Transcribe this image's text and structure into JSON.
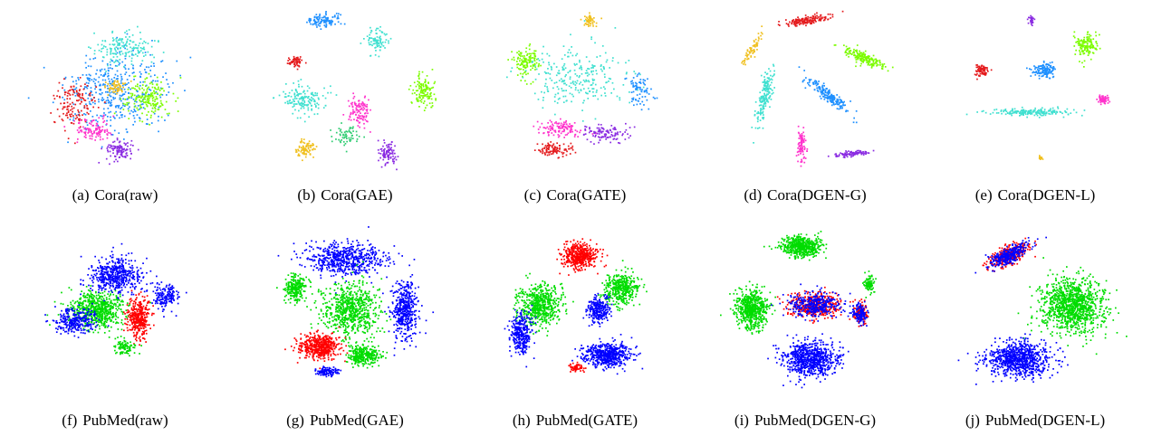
{
  "figure": {
    "panels": [
      {
        "tag": "(a)",
        "caption": "Cora(raw)"
      },
      {
        "tag": "(b)",
        "caption": "Cora(GAE)"
      },
      {
        "tag": "(c)",
        "caption": "Cora(GATE)"
      },
      {
        "tag": "(d)",
        "caption": "Cora(DGEN-G)"
      },
      {
        "tag": "(e)",
        "caption": "Cora(DGEN-L)"
      },
      {
        "tag": "(f)",
        "caption": "PubMed(raw)"
      },
      {
        "tag": "(g)",
        "caption": "PubMed(GAE)"
      },
      {
        "tag": "(h)",
        "caption": "PubMed(GATE)"
      },
      {
        "tag": "(i)",
        "caption": "PubMed(DGEN-G)"
      },
      {
        "tag": "(j)",
        "caption": "PubMed(DGEN-L)"
      }
    ]
  },
  "chart_data": [
    {
      "type": "scatter",
      "dataset": "Cora",
      "method": "raw",
      "class_colors": [
        "#e41a1c",
        "#ff7f00",
        "#f0c020",
        "#7cfc00",
        "#2ecc71",
        "#40e0d0",
        "#1e90ff",
        "#8a2be2",
        "#ff33cc"
      ],
      "grid": false,
      "legend": "none",
      "clusters": [
        {
          "x": 0.0,
          "y": 0.0,
          "sx": 0.55,
          "sy": 0.45,
          "color": 6,
          "n": 420
        },
        {
          "x": 0.35,
          "y": 0.1,
          "sx": 0.25,
          "sy": 0.25,
          "color": 3,
          "n": 180
        },
        {
          "x": -0.45,
          "y": 0.15,
          "sx": 0.25,
          "sy": 0.3,
          "color": 0,
          "n": 140
        },
        {
          "x": -0.25,
          "y": 0.45,
          "sx": 0.2,
          "sy": 0.15,
          "color": 8,
          "n": 110
        },
        {
          "x": 0.05,
          "y": 0.7,
          "sx": 0.15,
          "sy": 0.12,
          "color": 7,
          "n": 110
        },
        {
          "x": 0.0,
          "y": -0.05,
          "sx": 0.1,
          "sy": 0.08,
          "color": 2,
          "n": 60
        },
        {
          "x": 0.1,
          "y": -0.5,
          "sx": 0.35,
          "sy": 0.2,
          "color": 5,
          "n": 160
        }
      ]
    },
    {
      "type": "scatter",
      "dataset": "Cora",
      "method": "GAE",
      "class_colors": [
        "#e41a1c",
        "#ff7f00",
        "#f0c020",
        "#7cfc00",
        "#2ecc71",
        "#40e0d0",
        "#1e90ff",
        "#8a2be2",
        "#ff33cc"
      ],
      "grid": false,
      "legend": "none",
      "clusters": [
        {
          "x": -0.25,
          "y": -0.85,
          "sx": 0.18,
          "sy": 0.08,
          "color": 6,
          "n": 110
        },
        {
          "x": 0.35,
          "y": -0.6,
          "sx": 0.12,
          "sy": 0.15,
          "color": 5,
          "n": 90
        },
        {
          "x": -0.55,
          "y": -0.35,
          "sx": 0.08,
          "sy": 0.07,
          "color": 0,
          "n": 60
        },
        {
          "x": -0.45,
          "y": 0.1,
          "sx": 0.25,
          "sy": 0.18,
          "color": 5,
          "n": 160
        },
        {
          "x": 0.85,
          "y": 0.0,
          "sx": 0.12,
          "sy": 0.18,
          "color": 3,
          "n": 130
        },
        {
          "x": 0.15,
          "y": 0.25,
          "sx": 0.12,
          "sy": 0.18,
          "color": 8,
          "n": 110
        },
        {
          "x": -0.45,
          "y": 0.7,
          "sx": 0.1,
          "sy": 0.1,
          "color": 2,
          "n": 90
        },
        {
          "x": 0.45,
          "y": 0.75,
          "sx": 0.1,
          "sy": 0.15,
          "color": 7,
          "n": 90
        },
        {
          "x": 0.0,
          "y": 0.55,
          "sx": 0.15,
          "sy": 0.12,
          "color": 4,
          "n": 60
        }
      ]
    },
    {
      "type": "scatter",
      "dataset": "Cora",
      "method": "GATE",
      "class_colors": [
        "#e41a1c",
        "#ff7f00",
        "#f0c020",
        "#7cfc00",
        "#2ecc71",
        "#40e0d0",
        "#1e90ff",
        "#8a2be2",
        "#ff33cc"
      ],
      "grid": false,
      "legend": "none",
      "clusters": [
        {
          "x": 0.15,
          "y": -0.85,
          "sx": 0.06,
          "sy": 0.08,
          "color": 2,
          "n": 50
        },
        {
          "x": -0.55,
          "y": -0.35,
          "sx": 0.15,
          "sy": 0.2,
          "color": 3,
          "n": 130
        },
        {
          "x": 0.0,
          "y": -0.15,
          "sx": 0.5,
          "sy": 0.35,
          "color": 5,
          "n": 260
        },
        {
          "x": -0.15,
          "y": 0.45,
          "sx": 0.25,
          "sy": 0.1,
          "color": 8,
          "n": 120
        },
        {
          "x": 0.35,
          "y": 0.5,
          "sx": 0.25,
          "sy": 0.1,
          "color": 7,
          "n": 110
        },
        {
          "x": -0.25,
          "y": 0.7,
          "sx": 0.2,
          "sy": 0.08,
          "color": 0,
          "n": 100
        },
        {
          "x": 0.7,
          "y": 0.0,
          "sx": 0.15,
          "sy": 0.2,
          "color": 6,
          "n": 80
        }
      ]
    },
    {
      "type": "scatter",
      "dataset": "Cora",
      "method": "DGEN-G",
      "class_colors": [
        "#e41a1c",
        "#ff7f00",
        "#f0c020",
        "#7cfc00",
        "#2ecc71",
        "#40e0d0",
        "#1e90ff",
        "#8a2be2",
        "#ff33cc"
      ],
      "grid": false,
      "legend": "none",
      "clusters": [
        {
          "x": 0.0,
          "y": -0.85,
          "sx": 0.25,
          "sy": 0.05,
          "color": 0,
          "n": 150,
          "rot": -0.2
        },
        {
          "x": -0.6,
          "y": -0.5,
          "sx": 0.05,
          "sy": 0.22,
          "color": 2,
          "n": 70,
          "rot": 0.5
        },
        {
          "x": 0.65,
          "y": -0.4,
          "sx": 0.25,
          "sy": 0.07,
          "color": 3,
          "n": 170,
          "rot": 0.45
        },
        {
          "x": -0.45,
          "y": 0.05,
          "sx": 0.07,
          "sy": 0.35,
          "color": 5,
          "n": 180,
          "rot": 0.2
        },
        {
          "x": 0.25,
          "y": 0.05,
          "sx": 0.3,
          "sy": 0.07,
          "color": 6,
          "n": 190,
          "rot": 0.7
        },
        {
          "x": -0.05,
          "y": 0.65,
          "sx": 0.05,
          "sy": 0.2,
          "color": 8,
          "n": 90
        },
        {
          "x": 0.5,
          "y": 0.75,
          "sx": 0.2,
          "sy": 0.03,
          "color": 7,
          "n": 100,
          "rot": -0.1
        }
      ]
    },
    {
      "type": "scatter",
      "dataset": "Cora",
      "method": "DGEN-L",
      "class_colors": [
        "#e41a1c",
        "#ff7f00",
        "#f0c020",
        "#7cfc00",
        "#2ecc71",
        "#40e0d0",
        "#1e90ff",
        "#8a2be2",
        "#ff33cc"
      ],
      "grid": false,
      "legend": "none",
      "clusters": [
        {
          "x": -0.05,
          "y": -0.85,
          "sx": 0.03,
          "sy": 0.05,
          "color": 7,
          "n": 40
        },
        {
          "x": 0.55,
          "y": -0.55,
          "sx": 0.12,
          "sy": 0.15,
          "color": 3,
          "n": 150
        },
        {
          "x": -0.6,
          "y": -0.25,
          "sx": 0.07,
          "sy": 0.07,
          "color": 0,
          "n": 80
        },
        {
          "x": 0.1,
          "y": -0.25,
          "sx": 0.12,
          "sy": 0.1,
          "color": 6,
          "n": 130
        },
        {
          "x": 0.75,
          "y": 0.1,
          "sx": 0.06,
          "sy": 0.05,
          "color": 8,
          "n": 60
        },
        {
          "x": -0.05,
          "y": 0.25,
          "sx": 0.45,
          "sy": 0.04,
          "color": 5,
          "n": 190
        },
        {
          "x": 0.05,
          "y": 0.8,
          "sx": 0.02,
          "sy": 0.02,
          "color": 2,
          "n": 20
        }
      ]
    },
    {
      "type": "scatter",
      "dataset": "PubMed",
      "method": "raw",
      "class_colors": [
        "#ff0000",
        "#00dd00",
        "#0000ff"
      ],
      "grid": false,
      "legend": "none",
      "clusters": [
        {
          "x": -0.2,
          "y": 0.0,
          "sx": 0.3,
          "sy": 0.22,
          "color": 1,
          "n": 650
        },
        {
          "x": 0.0,
          "y": -0.4,
          "sx": 0.3,
          "sy": 0.2,
          "color": 2,
          "n": 500
        },
        {
          "x": 0.25,
          "y": 0.1,
          "sx": 0.12,
          "sy": 0.22,
          "color": 0,
          "n": 380
        },
        {
          "x": -0.45,
          "y": 0.15,
          "sx": 0.22,
          "sy": 0.15,
          "color": 2,
          "n": 280
        },
        {
          "x": 0.55,
          "y": -0.15,
          "sx": 0.15,
          "sy": 0.15,
          "color": 2,
          "n": 160
        },
        {
          "x": 0.1,
          "y": 0.45,
          "sx": 0.12,
          "sy": 0.08,
          "color": 1,
          "n": 90
        }
      ]
    },
    {
      "type": "scatter",
      "dataset": "PubMed",
      "method": "GAE",
      "class_colors": [
        "#ff0000",
        "#00dd00",
        "#0000ff"
      ],
      "grid": false,
      "legend": "none",
      "clusters": [
        {
          "x": 0.0,
          "y": -0.6,
          "sx": 0.45,
          "sy": 0.2,
          "color": 2,
          "n": 600
        },
        {
          "x": 0.65,
          "y": 0.0,
          "sx": 0.15,
          "sy": 0.35,
          "color": 2,
          "n": 450
        },
        {
          "x": 0.05,
          "y": 0.0,
          "sx": 0.3,
          "sy": 0.3,
          "color": 1,
          "n": 700
        },
        {
          "x": -0.3,
          "y": 0.45,
          "sx": 0.22,
          "sy": 0.15,
          "color": 0,
          "n": 500
        },
        {
          "x": -0.55,
          "y": -0.25,
          "sx": 0.12,
          "sy": 0.15,
          "color": 1,
          "n": 250
        },
        {
          "x": 0.2,
          "y": 0.55,
          "sx": 0.18,
          "sy": 0.12,
          "color": 1,
          "n": 300
        },
        {
          "x": -0.2,
          "y": 0.75,
          "sx": 0.12,
          "sy": 0.05,
          "color": 2,
          "n": 120
        }
      ]
    },
    {
      "type": "scatter",
      "dataset": "PubMed",
      "method": "GATE",
      "class_colors": [
        "#ff0000",
        "#00dd00",
        "#0000ff"
      ],
      "grid": false,
      "legend": "none",
      "clusters": [
        {
          "x": 0.05,
          "y": -0.65,
          "sx": 0.2,
          "sy": 0.15,
          "color": 0,
          "n": 450
        },
        {
          "x": -0.4,
          "y": -0.05,
          "sx": 0.25,
          "sy": 0.25,
          "color": 1,
          "n": 550
        },
        {
          "x": 0.5,
          "y": -0.25,
          "sx": 0.2,
          "sy": 0.2,
          "color": 1,
          "n": 400
        },
        {
          "x": 0.35,
          "y": 0.55,
          "sx": 0.25,
          "sy": 0.15,
          "color": 2,
          "n": 550
        },
        {
          "x": -0.6,
          "y": 0.3,
          "sx": 0.12,
          "sy": 0.25,
          "color": 2,
          "n": 300
        },
        {
          "x": 0.25,
          "y": 0.0,
          "sx": 0.12,
          "sy": 0.15,
          "color": 2,
          "n": 250
        },
        {
          "x": 0.0,
          "y": 0.7,
          "sx": 0.1,
          "sy": 0.05,
          "color": 0,
          "n": 60
        }
      ]
    },
    {
      "type": "scatter",
      "dataset": "PubMed",
      "method": "DGEN-G",
      "class_colors": [
        "#ff0000",
        "#00dd00",
        "#0000ff"
      ],
      "grid": false,
      "legend": "none",
      "clusters": [
        {
          "x": -0.05,
          "y": -0.75,
          "sx": 0.2,
          "sy": 0.12,
          "color": 1,
          "n": 550
        },
        {
          "x": -0.6,
          "y": 0.0,
          "sx": 0.18,
          "sy": 0.22,
          "color": 1,
          "n": 650
        },
        {
          "x": 0.1,
          "y": -0.05,
          "sx": 0.28,
          "sy": 0.15,
          "color": 0,
          "n": 350
        },
        {
          "x": 0.1,
          "y": -0.05,
          "sx": 0.28,
          "sy": 0.15,
          "color": 2,
          "n": 350
        },
        {
          "x": 0.6,
          "y": 0.05,
          "sx": 0.08,
          "sy": 0.12,
          "color": 0,
          "n": 120
        },
        {
          "x": 0.6,
          "y": 0.05,
          "sx": 0.08,
          "sy": 0.12,
          "color": 2,
          "n": 120
        },
        {
          "x": 0.05,
          "y": 0.6,
          "sx": 0.3,
          "sy": 0.2,
          "color": 2,
          "n": 750
        },
        {
          "x": 0.7,
          "y": -0.3,
          "sx": 0.05,
          "sy": 0.1,
          "color": 1,
          "n": 90
        }
      ]
    },
    {
      "type": "scatter",
      "dataset": "PubMed",
      "method": "DGEN-L",
      "class_colors": [
        "#ff0000",
        "#00dd00",
        "#0000ff"
      ],
      "grid": false,
      "legend": "none",
      "clusters": [
        {
          "x": -0.3,
          "y": -0.65,
          "sx": 0.25,
          "sy": 0.1,
          "color": 0,
          "n": 300,
          "rot": -0.5
        },
        {
          "x": -0.3,
          "y": -0.65,
          "sx": 0.25,
          "sy": 0.1,
          "color": 2,
          "n": 300,
          "rot": -0.5
        },
        {
          "x": 0.4,
          "y": -0.05,
          "sx": 0.35,
          "sy": 0.32,
          "color": 1,
          "n": 1100
        },
        {
          "x": -0.2,
          "y": 0.6,
          "sx": 0.35,
          "sy": 0.2,
          "color": 2,
          "n": 850
        }
      ]
    }
  ]
}
